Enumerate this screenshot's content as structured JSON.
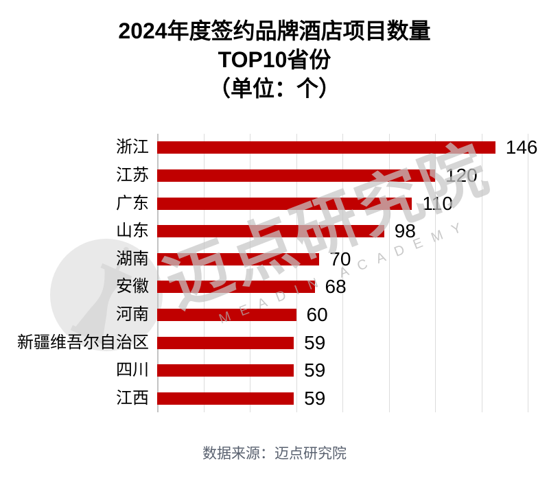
{
  "title": {
    "line1": "2024年度签约品牌酒店项目数量",
    "line2": "TOP10省份",
    "line3": "（单位：个）"
  },
  "chart_data": {
    "type": "bar",
    "orientation": "horizontal",
    "title": "2024年度签约品牌酒店项目数量TOP10省份（单位：个）",
    "categories": [
      "浙江",
      "江苏",
      "广东",
      "山东",
      "湖南",
      "安徽",
      "河南",
      "新疆维吾尔自治区",
      "四川",
      "江西"
    ],
    "values": [
      146,
      120,
      110,
      98,
      70,
      68,
      60,
      59,
      59,
      59
    ],
    "xlabel": "",
    "ylabel": "",
    "xlim": [
      0,
      160
    ],
    "grid_step": 20,
    "grid": true,
    "value_labels": true,
    "bar_color": "#c00000",
    "legend": "none"
  },
  "watermark": {
    "cn_text": "迈点研究院",
    "en_text": "MEADIN ACADEMY"
  },
  "footer": {
    "source": "数据来源：迈点研究院"
  },
  "colors": {
    "bar": "#c00000",
    "grid": "#dcdcdc",
    "axis": "#c3c3c3",
    "title_text": "#000000",
    "footer_text": "#5a6270",
    "watermark": "#c6c6c6"
  }
}
